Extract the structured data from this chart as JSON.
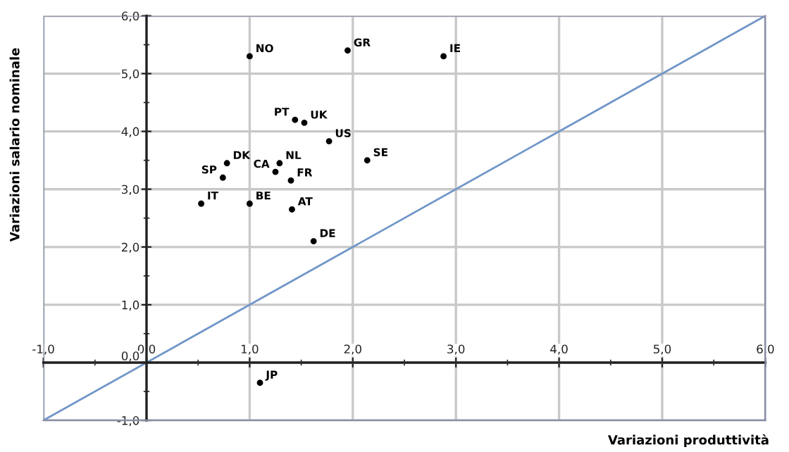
{
  "chart_data": {
    "type": "scatter",
    "xlabel": "Variazioni produttività",
    "ylabel": "Variazioni salario nominale",
    "marker": "circle",
    "grid": true,
    "xlim": [
      -1,
      6
    ],
    "ylim": [
      -1,
      6
    ],
    "xticks": [
      {
        "value": -1,
        "label": "-1,0"
      },
      {
        "value": -0.5,
        "label": null
      },
      {
        "value": 0,
        "label": "0,0"
      },
      {
        "value": 0.5,
        "label": null
      },
      {
        "value": 1,
        "label": "1,0"
      },
      {
        "value": 1.5,
        "label": null
      },
      {
        "value": 2,
        "label": "2,0"
      },
      {
        "value": 2.5,
        "label": null
      },
      {
        "value": 3,
        "label": "3,0"
      },
      {
        "value": 3.5,
        "label": null
      },
      {
        "value": 4,
        "label": "4,0"
      },
      {
        "value": 4.5,
        "label": null
      },
      {
        "value": 5,
        "label": "5,0"
      },
      {
        "value": 5.5,
        "label": null
      },
      {
        "value": 6,
        "label": "6,0"
      }
    ],
    "yticks": [
      {
        "value": -1,
        "label": "-1,0"
      },
      {
        "value": -0.5,
        "label": null
      },
      {
        "value": 0,
        "label": "0,0"
      },
      {
        "value": 0.5,
        "label": null
      },
      {
        "value": 1,
        "label": "1,0"
      },
      {
        "value": 1.5,
        "label": null
      },
      {
        "value": 2,
        "label": "2,0"
      },
      {
        "value": 2.5,
        "label": null
      },
      {
        "value": 3,
        "label": "3,0"
      },
      {
        "value": 3.5,
        "label": null
      },
      {
        "value": 4,
        "label": "4,0"
      },
      {
        "value": 4.5,
        "label": null
      },
      {
        "value": 5,
        "label": "5,0"
      },
      {
        "value": 5.5,
        "label": null
      },
      {
        "value": 6,
        "label": "6,0"
      }
    ],
    "series": [
      {
        "name": "NO",
        "color": "#000000",
        "x": [
          1.0
        ],
        "values": [
          5.3
        ]
      },
      {
        "name": "GR",
        "color": "#000000",
        "x": [
          1.95
        ],
        "values": [
          5.4
        ]
      },
      {
        "name": "IE",
        "color": "#000000",
        "x": [
          2.88
        ],
        "values": [
          5.3
        ]
      },
      {
        "name": "PT",
        "color": "#000000",
        "x": [
          1.44
        ],
        "values": [
          4.2
        ]
      },
      {
        "name": "UK",
        "color": "#000000",
        "x": [
          1.53
        ],
        "values": [
          4.15
        ]
      },
      {
        "name": "US",
        "color": "#000000",
        "x": [
          1.77
        ],
        "values": [
          3.83
        ]
      },
      {
        "name": "SE",
        "color": "#000000",
        "x": [
          2.14
        ],
        "values": [
          3.5
        ]
      },
      {
        "name": "DK",
        "color": "#000000",
        "x": [
          0.78
        ],
        "values": [
          3.45
        ]
      },
      {
        "name": "SP",
        "color": "#000000",
        "x": [
          0.74
        ],
        "values": [
          3.2
        ]
      },
      {
        "name": "NL",
        "color": "#000000",
        "x": [
          1.29
        ],
        "values": [
          3.45
        ]
      },
      {
        "name": "CA",
        "color": "#000000",
        "x": [
          1.25
        ],
        "values": [
          3.3
        ]
      },
      {
        "name": "FR",
        "color": "#000000",
        "x": [
          1.4
        ],
        "values": [
          3.15
        ]
      },
      {
        "name": "IT",
        "color": "#000000",
        "x": [
          0.53
        ],
        "values": [
          2.75
        ]
      },
      {
        "name": "BE",
        "color": "#000000",
        "x": [
          1.0
        ],
        "values": [
          2.75
        ]
      },
      {
        "name": "AT",
        "color": "#000000",
        "x": [
          1.41
        ],
        "values": [
          2.65
        ]
      },
      {
        "name": "DE",
        "color": "#000000",
        "x": [
          1.62
        ],
        "values": [
          2.1
        ]
      },
      {
        "name": "JP",
        "color": "#000000",
        "x": [
          1.1
        ],
        "values": [
          -0.35
        ]
      },
      {
        "type": "line",
        "color": "#7196c8",
        "x": [
          -1,
          6
        ],
        "values": [
          -1,
          6
        ],
        "marker": "none",
        "line_style": "solid"
      }
    ]
  }
}
